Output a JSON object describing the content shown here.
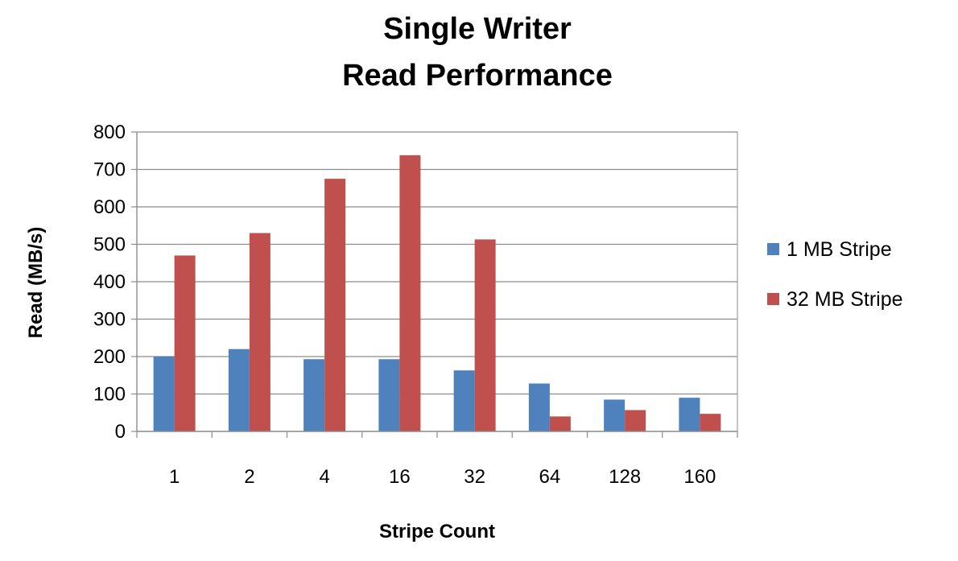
{
  "chart_data": {
    "type": "bar",
    "title": [
      "Single Writer",
      "Read Performance"
    ],
    "xlabel": "Stripe Count",
    "ylabel": "Read (MB/s)",
    "categories": [
      "1",
      "2",
      "4",
      "16",
      "32",
      "64",
      "128",
      "160"
    ],
    "series": [
      {
        "name": "1 MB Stripe",
        "color": "#4f81bd",
        "values": [
          200,
          220,
          193,
          193,
          163,
          128,
          85,
          90
        ]
      },
      {
        "name": "32 MB Stripe",
        "color": "#c0504d",
        "values": [
          470,
          530,
          675,
          738,
          513,
          40,
          57,
          47
        ]
      }
    ],
    "ylim": [
      0,
      800
    ],
    "yticks": [
      0,
      100,
      200,
      300,
      400,
      500,
      600,
      700,
      800
    ],
    "grid": true,
    "legend_position": "right"
  }
}
